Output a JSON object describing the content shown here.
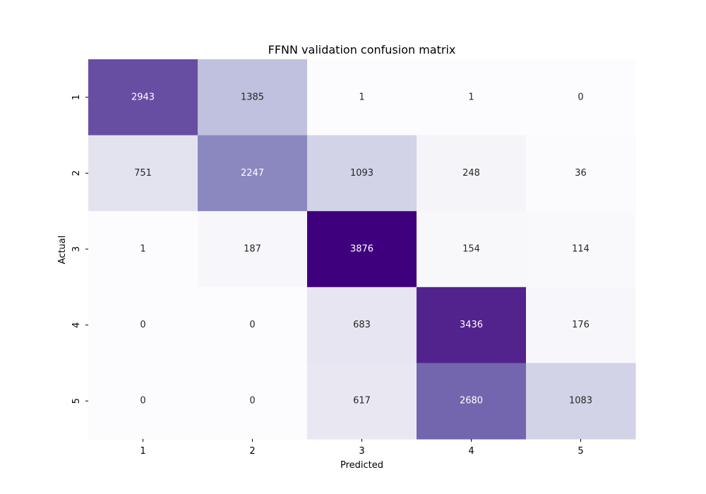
{
  "chart_data": {
    "type": "heatmap",
    "title": "FFNN validation confusion matrix",
    "xlabel": "Predicted",
    "ylabel": "Actual",
    "x_categories": [
      "1",
      "2",
      "3",
      "4",
      "5"
    ],
    "y_categories": [
      "1",
      "2",
      "3",
      "4",
      "5"
    ],
    "values": [
      [
        2943,
        1385,
        1,
        1,
        0
      ],
      [
        751,
        2247,
        1093,
        248,
        36
      ],
      [
        1,
        187,
        3876,
        154,
        114
      ],
      [
        0,
        0,
        683,
        3436,
        176
      ],
      [
        0,
        0,
        617,
        2680,
        1083
      ]
    ],
    "colormap": "Purples",
    "color_low": "#fcfbfd",
    "color_high": "#3f007d",
    "colorbar": false,
    "grid": false
  }
}
